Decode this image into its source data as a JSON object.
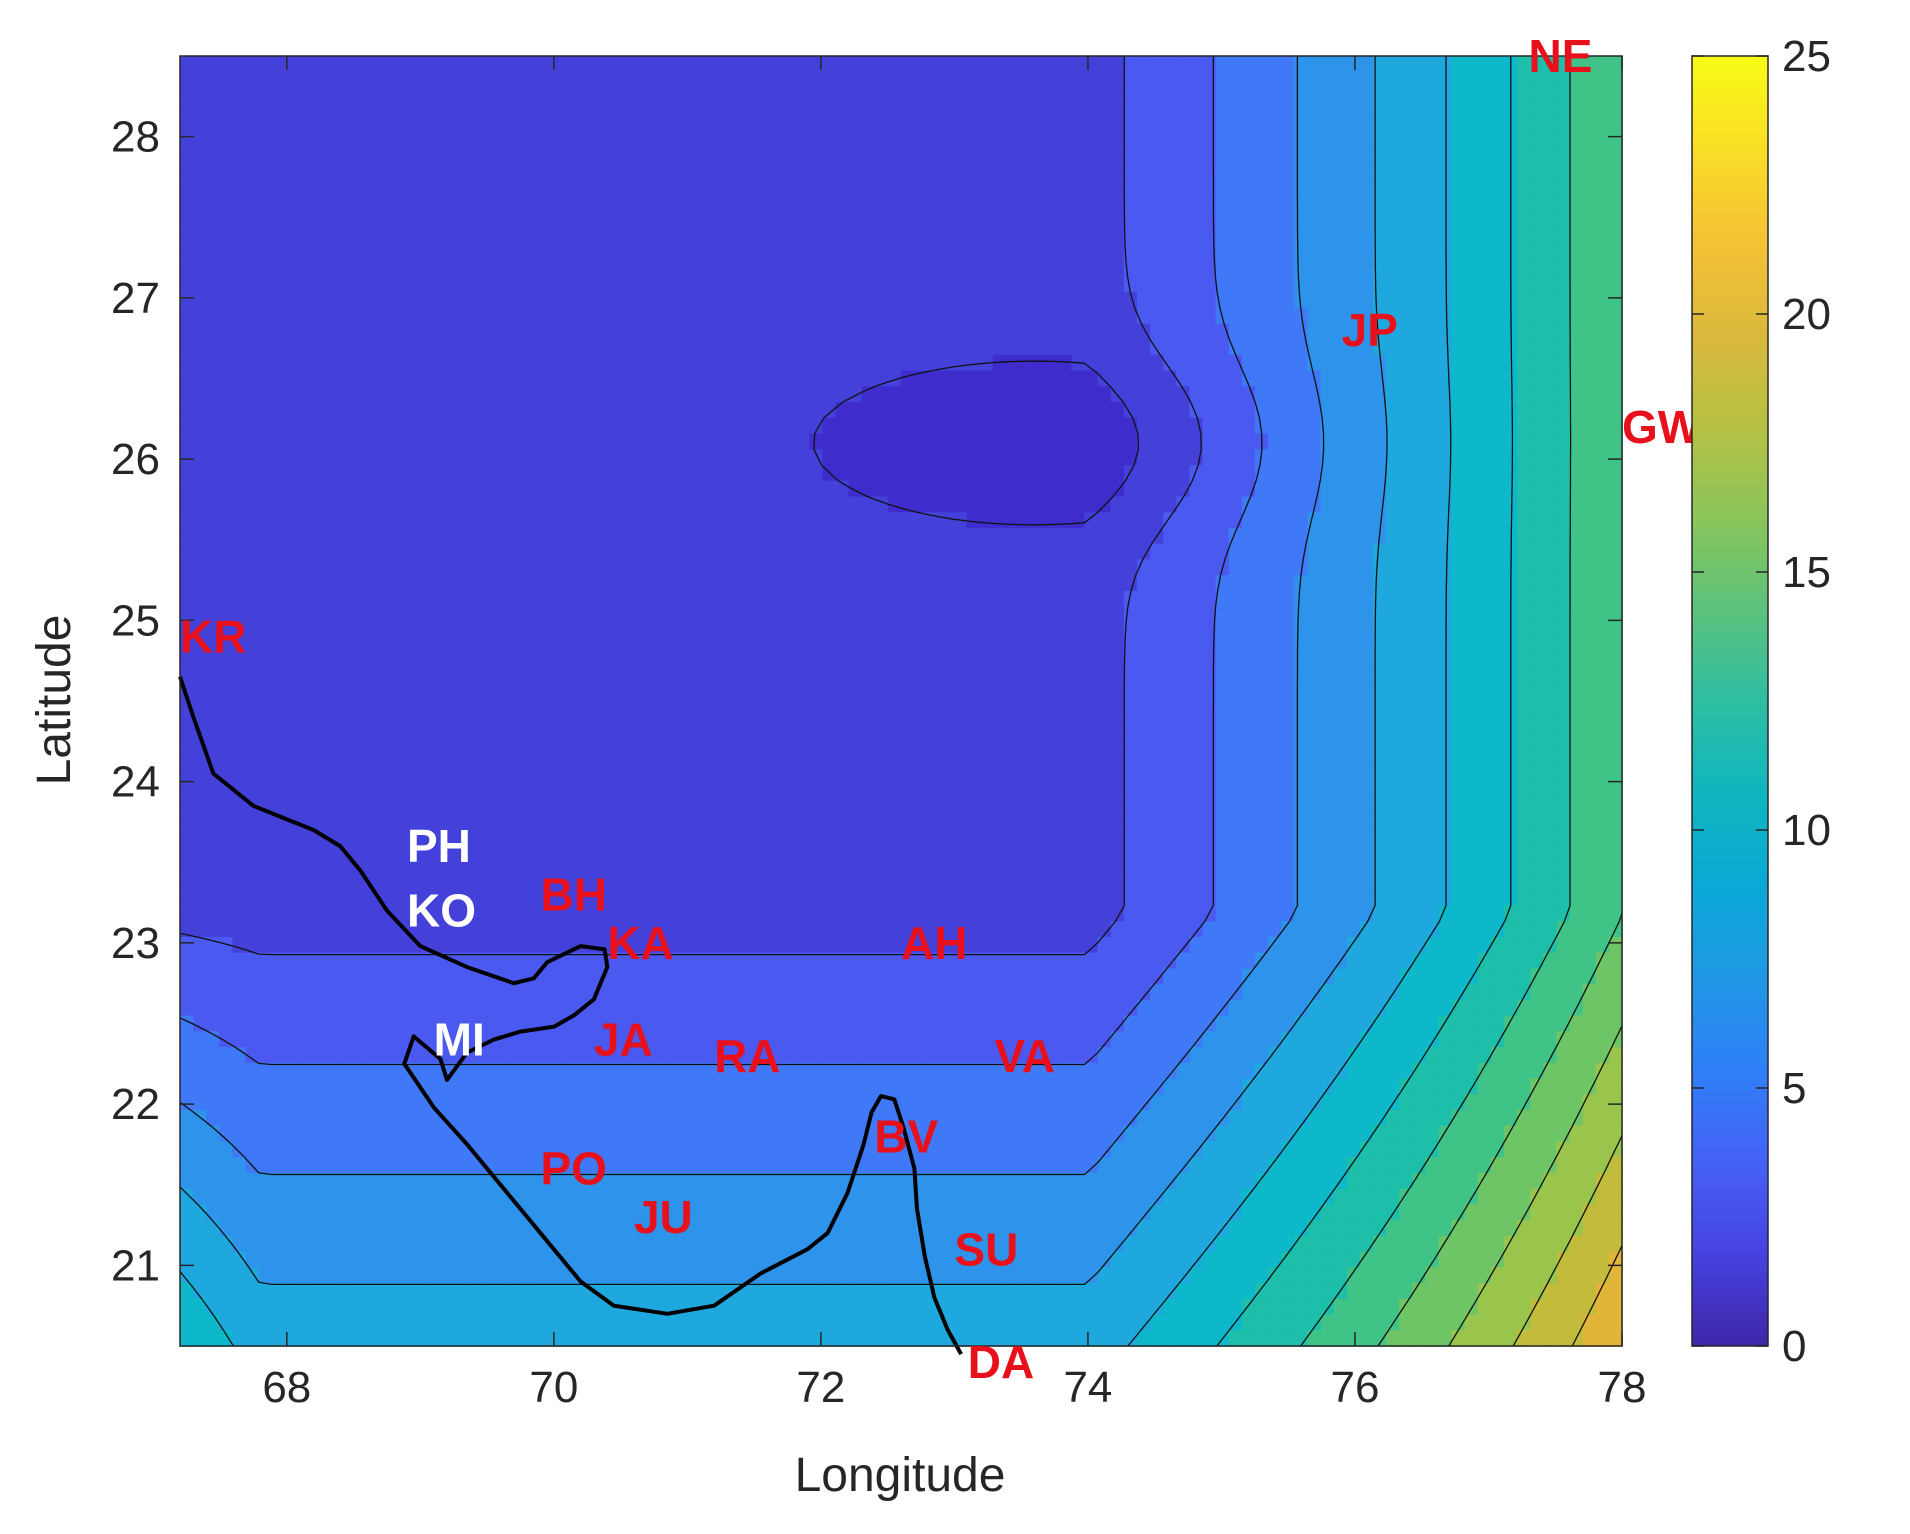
{
  "chart_data": {
    "type": "contour",
    "title": "",
    "xlabel": "Longitude",
    "ylabel": "Latitude",
    "xlim": [
      67.2,
      78
    ],
    "ylim": [
      20.5,
      28.5
    ],
    "xticks": [
      "68",
      "70",
      "72",
      "74",
      "76",
      "78"
    ],
    "yticks": [
      "21",
      "22",
      "23",
      "24",
      "25",
      "26",
      "27",
      "28"
    ],
    "colorbar": {
      "limits": [
        0,
        25
      ],
      "ticks": [
        "0",
        "5",
        "10",
        "15",
        "20",
        "25"
      ],
      "colormap": "parula",
      "placement": "right"
    },
    "contour_levels": [
      0,
      1.5,
      3,
      4.5,
      6,
      7.5,
      9,
      10.5,
      12,
      13.5,
      15,
      16.5,
      18,
      19.5,
      21
    ],
    "level_colors": [
      "#3e2dcc",
      "#4441db",
      "#4a59f0",
      "#3f79f7",
      "#2e93ea",
      "#1fa8de",
      "#0cb8c9",
      "#1dbeaa",
      "#3fc387",
      "#6ec566",
      "#9ac54d",
      "#c2bb3c",
      "#e1b43a",
      "#f6c52e",
      "#f9e21c"
    ],
    "station_labels": [
      {
        "name": "NE",
        "lon": 77.3,
        "lat": 28.5
      },
      {
        "name": "JP",
        "lon": 75.9,
        "lat": 26.8
      },
      {
        "name": "GW",
        "lon": 78.0,
        "lat": 26.2
      },
      {
        "name": "KR",
        "lon": 67.2,
        "lat": 24.9
      },
      {
        "name": "PH",
        "lon": 68.9,
        "lat": 23.6
      },
      {
        "name": "KO",
        "lon": 68.9,
        "lat": 23.2
      },
      {
        "name": "BH",
        "lon": 69.9,
        "lat": 23.3
      },
      {
        "name": "KA",
        "lon": 70.4,
        "lat": 23.0
      },
      {
        "name": "AH",
        "lon": 72.6,
        "lat": 23.0
      },
      {
        "name": "MI",
        "lon": 69.1,
        "lat": 22.4
      },
      {
        "name": "JA",
        "lon": 70.3,
        "lat": 22.4
      },
      {
        "name": "RA",
        "lon": 71.2,
        "lat": 22.3
      },
      {
        "name": "VA",
        "lon": 73.3,
        "lat": 22.3
      },
      {
        "name": "BV",
        "lon": 72.4,
        "lat": 21.8
      },
      {
        "name": "PO",
        "lon": 69.9,
        "lat": 21.6
      },
      {
        "name": "JU",
        "lon": 70.6,
        "lat": 21.3
      },
      {
        "name": "SU",
        "lon": 73.0,
        "lat": 21.1
      },
      {
        "name": "DA",
        "lon": 73.1,
        "lat": 20.4
      }
    ],
    "white_labels": [
      "PH",
      "KO",
      "MI"
    ],
    "label_color": "#e8101a",
    "coastline": [
      [
        67.2,
        24.65
      ],
      [
        67.3,
        24.4
      ],
      [
        67.45,
        24.05
      ],
      [
        67.75,
        23.85
      ],
      [
        68.2,
        23.7
      ],
      [
        68.4,
        23.6
      ],
      [
        68.55,
        23.45
      ],
      [
        68.75,
        23.2
      ],
      [
        69.0,
        22.98
      ],
      [
        69.35,
        22.85
      ],
      [
        69.7,
        22.75
      ],
      [
        69.85,
        22.78
      ],
      [
        69.95,
        22.88
      ],
      [
        70.2,
        22.98
      ],
      [
        70.38,
        22.96
      ],
      [
        70.4,
        22.85
      ],
      [
        70.3,
        22.65
      ],
      [
        70.15,
        22.55
      ],
      [
        70.0,
        22.48
      ],
      [
        69.75,
        22.45
      ],
      [
        69.55,
        22.4
      ],
      [
        69.35,
        22.32
      ],
      [
        69.2,
        22.15
      ],
      [
        69.15,
        22.28
      ],
      [
        68.95,
        22.42
      ],
      [
        68.88,
        22.25
      ],
      [
        69.1,
        21.98
      ],
      [
        69.35,
        21.75
      ],
      [
        69.55,
        21.55
      ],
      [
        69.75,
        21.35
      ],
      [
        69.95,
        21.15
      ],
      [
        70.2,
        20.9
      ],
      [
        70.45,
        20.75
      ],
      [
        70.85,
        20.7
      ],
      [
        71.2,
        20.75
      ],
      [
        71.55,
        20.95
      ],
      [
        71.9,
        21.1
      ],
      [
        72.05,
        21.2
      ],
      [
        72.2,
        21.45
      ],
      [
        72.32,
        21.75
      ],
      [
        72.38,
        21.95
      ],
      [
        72.45,
        22.05
      ],
      [
        72.55,
        22.03
      ],
      [
        72.62,
        21.85
      ],
      [
        72.7,
        21.6
      ],
      [
        72.72,
        21.35
      ],
      [
        72.78,
        21.05
      ],
      [
        72.85,
        20.8
      ],
      [
        72.95,
        20.6
      ],
      [
        73.05,
        20.45
      ]
    ]
  }
}
